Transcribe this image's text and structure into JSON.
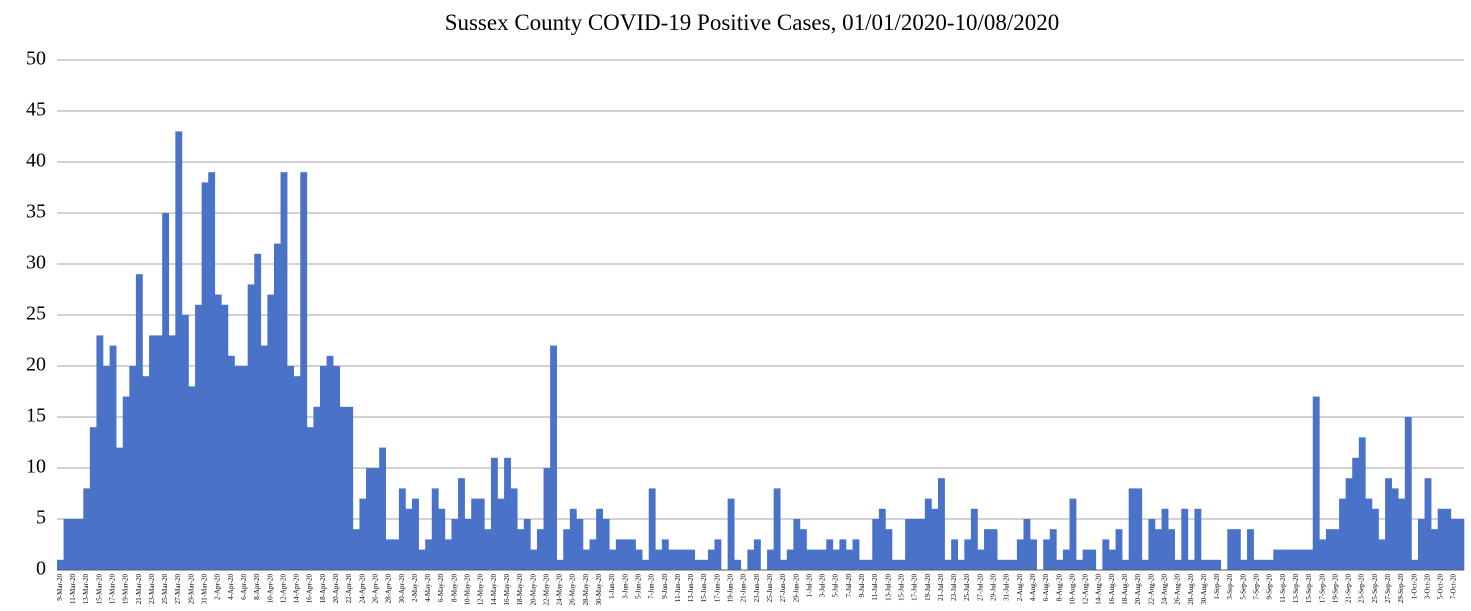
{
  "chart_data": {
    "type": "bar",
    "title": "Sussex County COVID-19 Positive Cases, 01/01/2020-10/08/2020",
    "categories": [
      "9-Mar-20",
      null,
      "11-Mar-20",
      null,
      "13-Mar-20",
      null,
      "15-Mar-20",
      null,
      "17-Mar-20",
      null,
      "19-Mar-20",
      null,
      "21-Mar-20",
      null,
      "23-Mar-20",
      null,
      "25-Mar-20",
      null,
      "27-Mar-20",
      null,
      "29-Mar-20",
      null,
      "31-Mar-20",
      null,
      "2-Apr-20",
      null,
      "4-Apr-20",
      null,
      "6-Apr-20",
      null,
      "8-Apr-20",
      null,
      "10-Apr-20",
      null,
      "12-Apr-20",
      null,
      "14-Apr-20",
      null,
      "16-Apr-20",
      null,
      "18-Apr-20",
      null,
      "20-Apr-20",
      null,
      "22-Apr-20",
      null,
      "24-Apr-20",
      null,
      "26-Apr-20",
      null,
      "28-Apr-20",
      null,
      "30-Apr-20",
      null,
      "2-May-20",
      null,
      "4-May-20",
      null,
      "6-May-20",
      null,
      "8-May-20",
      null,
      "10-May-20",
      null,
      "12-May-20",
      null,
      "14-May-20",
      null,
      "16-May-20",
      null,
      "18-May-20",
      null,
      "20-May-20",
      null,
      "22-May-20",
      null,
      "24-May-20",
      null,
      "26-May-20",
      null,
      "28-May-20",
      null,
      "30-May-20",
      null,
      "1-Jun-20",
      null,
      "3-Jun-20",
      null,
      "5-Jun-20",
      null,
      "7-Jun-20",
      null,
      "9-Jun-20",
      null,
      "11-Jun-20",
      null,
      "13-Jun-20",
      null,
      "15-Jun-20",
      null,
      "17-Jun-20",
      null,
      "19-Jun-20",
      null,
      "21-Jun-20",
      null,
      "23-Jun-20",
      null,
      "25-Jun-20",
      null,
      "27-Jun-20",
      null,
      "29-Jun-20",
      null,
      "1-Jul-20",
      null,
      "3-Jul-20",
      null,
      "5-Jul-20",
      null,
      "7-Jul-20",
      null,
      "9-Jul-20",
      null,
      "11-Jul-20",
      null,
      "13-Jul-20",
      null,
      "15-Jul-20",
      null,
      "17-Jul-20",
      null,
      "19-Jul-20",
      null,
      "21-Jul-20",
      null,
      "23-Jul-20",
      null,
      "25-Jul-20",
      null,
      "27-Jul-20",
      null,
      "29-Jul-20",
      null,
      "31-Jul-20",
      null,
      "2-Aug-20",
      null,
      "4-Aug-20",
      null,
      "6-Aug-20",
      null,
      "8-Aug-20",
      null,
      "10-Aug-20",
      null,
      "12-Aug-20",
      null,
      "14-Aug-20",
      null,
      "16-Aug-20",
      null,
      "18-Aug-20",
      null,
      "20-Aug-20",
      null,
      "22-Aug-20",
      null,
      "24-Aug-20",
      null,
      "26-Aug-20",
      null,
      "28-Aug-20",
      null,
      "30-Aug-20",
      null,
      "1-Sep-20",
      null,
      "3-Sep-20",
      null,
      "5-Sep-20",
      null,
      "7-Sep-20",
      null,
      "9-Sep-20",
      null,
      "11-Sep-20",
      null,
      "13-Sep-20",
      null,
      "15-Sep-20",
      null,
      "17-Sep-20",
      null,
      "19-Sep-20",
      null,
      "21-Sep-20",
      null,
      "23-Sep-20",
      null,
      "25-Sep-20",
      null,
      "27-Sep-20",
      null,
      "29-Sep-20",
      null,
      "1-Oct-20",
      null,
      "3-Oct-20",
      null,
      "5-Oct-20",
      null,
      "7-Oct-20",
      null
    ],
    "values": [
      1,
      5,
      5,
      5,
      8,
      14,
      23,
      20,
      22,
      12,
      17,
      20,
      29,
      19,
      23,
      23,
      35,
      23,
      43,
      25,
      18,
      26,
      38,
      39,
      27,
      26,
      21,
      20,
      20,
      28,
      31,
      22,
      27,
      32,
      39,
      20,
      19,
      39,
      14,
      16,
      20,
      21,
      20,
      16,
      16,
      4,
      7,
      10,
      10,
      12,
      3,
      3,
      8,
      6,
      7,
      2,
      3,
      8,
      6,
      3,
      5,
      9,
      5,
      7,
      7,
      4,
      11,
      7,
      11,
      8,
      4,
      5,
      2,
      4,
      10,
      22,
      1,
      4,
      6,
      5,
      2,
      3,
      6,
      5,
      2,
      3,
      3,
      3,
      2,
      1,
      8,
      2,
      3,
      2,
      2,
      2,
      2,
      1,
      1,
      2,
      3,
      0,
      7,
      1,
      0,
      2,
      3,
      0,
      2,
      8,
      1,
      2,
      5,
      4,
      2,
      2,
      2,
      3,
      2,
      3,
      2,
      3,
      1,
      1,
      5,
      6,
      4,
      1,
      1,
      5,
      5,
      5,
      7,
      6,
      9,
      1,
      3,
      1,
      3,
      6,
      2,
      4,
      4,
      1,
      1,
      1,
      3,
      5,
      3,
      0,
      3,
      4,
      1,
      2,
      7,
      1,
      2,
      2,
      0,
      3,
      2,
      4,
      1,
      8,
      8,
      1,
      5,
      4,
      6,
      4,
      1,
      6,
      1,
      6,
      1,
      1,
      1,
      0,
      4,
      4,
      1,
      4,
      1,
      1,
      1,
      2,
      2,
      2,
      2,
      2,
      2,
      17,
      3,
      4,
      4,
      7,
      9,
      11,
      13,
      7,
      6,
      3,
      9,
      8,
      7,
      15,
      1,
      5,
      9,
      4,
      6,
      6,
      5,
      5
    ],
    "color": "#4a72c8",
    "ylim": [
      0,
      50
    ],
    "yticks": [
      0,
      5,
      10,
      15,
      20,
      25,
      30,
      35,
      40,
      45,
      50
    ],
    "grid": true
  }
}
